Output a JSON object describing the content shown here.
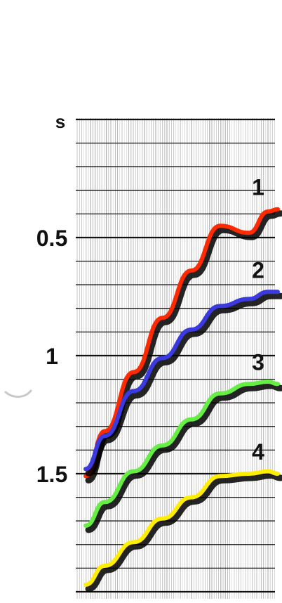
{
  "chart_data": {
    "type": "line",
    "title": "",
    "xlabel": "",
    "ylabel": "s",
    "y_axis": {
      "unit_label": "s",
      "inverted": true,
      "ticks": [
        "0.5",
        "1",
        "1.5"
      ],
      "tick_values": [
        0.5,
        1.0,
        1.5
      ]
    },
    "x_axis": {
      "shown": false
    },
    "background": "seismic-record",
    "series": [
      {
        "name": "1",
        "color": "#ff2a00",
        "x": [
          0.0,
          0.1,
          0.25,
          0.4,
          0.55,
          0.7,
          0.85,
          0.95,
          1.0
        ],
        "y": [
          1.51,
          1.32,
          1.07,
          0.84,
          0.64,
          0.45,
          0.48,
          0.39,
          0.38
        ]
      },
      {
        "name": "2",
        "color": "#3a3ae0",
        "x": [
          0.0,
          0.1,
          0.25,
          0.4,
          0.55,
          0.7,
          0.85,
          0.95,
          1.0
        ],
        "y": [
          1.48,
          1.34,
          1.15,
          1.01,
          0.89,
          0.79,
          0.76,
          0.73,
          0.73
        ]
      },
      {
        "name": "3",
        "color": "#66ee44",
        "x": [
          0.0,
          0.1,
          0.25,
          0.4,
          0.55,
          0.7,
          0.85,
          0.95,
          1.0
        ],
        "y": [
          1.72,
          1.62,
          1.49,
          1.38,
          1.27,
          1.16,
          1.12,
          1.11,
          1.12
        ]
      },
      {
        "name": "4",
        "color": "#ffee00",
        "x": [
          0.0,
          0.1,
          0.25,
          0.4,
          0.55,
          0.7,
          0.85,
          0.95,
          1.0
        ],
        "y": [
          1.97,
          1.89,
          1.79,
          1.69,
          1.6,
          1.51,
          1.5,
          1.49,
          1.5
        ]
      }
    ],
    "curve_labels": [
      "1",
      "2",
      "3",
      "4"
    ]
  }
}
